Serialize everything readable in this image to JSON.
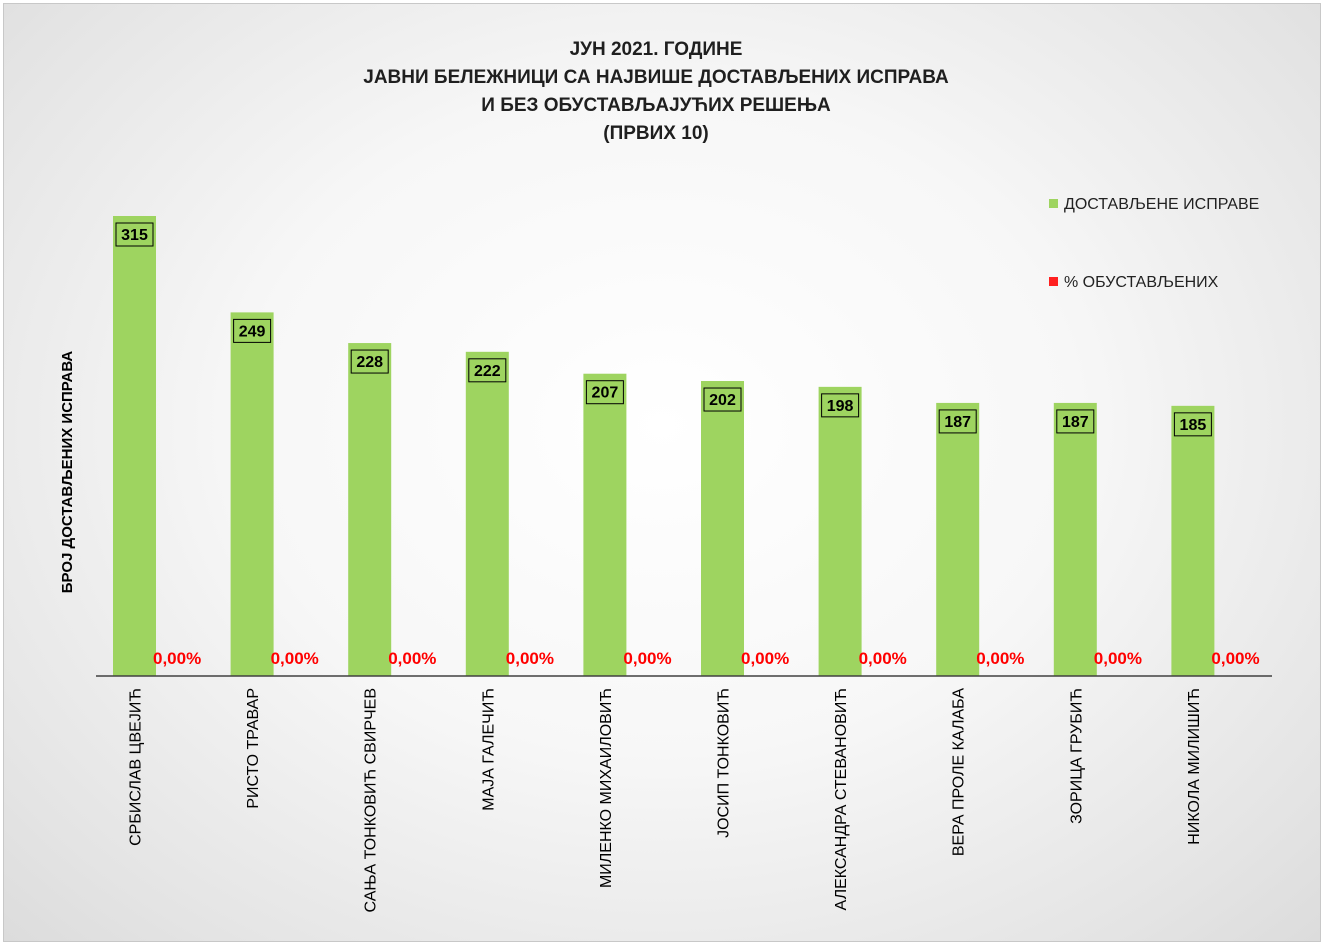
{
  "chart_data": {
    "type": "bar",
    "title_lines": [
      "ЈУН 2021. ГОДИНЕ",
      "ЈАВНИ БЕЛЕЖНИЦИ СА НАЈВИШЕ ДОСТАВЉЕНИХ ИСПРАВА",
      "И БЕЗ ОБУСТАВЉАЈУЋИХ РЕШЕЊА",
      "(ПРВИХ 10)"
    ],
    "ylabel": "БРОЈ ДОСТАВЉЕНИХ ИСПРАВА",
    "xlabel": "",
    "ylim": [
      0,
      350
    ],
    "grid": false,
    "legend_position": "top-right",
    "categories": [
      "СРБИСЛАВ ЦВЕЈИЋ",
      "РИСТО ТРАВАР",
      "САЊА ТОНКОВИЋ СВИРЧЕВ",
      "МАЈА ГАЛЕЧИЋ",
      "МИЛЕНКО МИХАИЛОВИЋ",
      "ЈОСИП ТОНКОВИЋ",
      "АЛЕКСАНДРА СТЕВАНОВИЋ",
      "ВЕРА ПРОЛЕ КАЛАБА",
      "ЗОРИЦА  ГРУБИЋ",
      "НИКОЛА МИЛИШИЋ"
    ],
    "series": [
      {
        "name": "ДОСТАВЉЕНЕ ИСПРАВЕ",
        "color": "#9ed460",
        "values": [
          315,
          249,
          228,
          222,
          207,
          202,
          198,
          187,
          187,
          185
        ],
        "labels": [
          "315",
          "249",
          "228",
          "222",
          "207",
          "202",
          "198",
          "187",
          "187",
          "185"
        ]
      },
      {
        "name": "% ОБУСТАВЉЕНИХ",
        "color": "#ff2020",
        "values": [
          0,
          0,
          0,
          0,
          0,
          0,
          0,
          0,
          0,
          0
        ],
        "labels": [
          "0,00%",
          "0,00%",
          "0,00%",
          "0,00%",
          "0,00%",
          "0,00%",
          "0,00%",
          "0,00%",
          "0,00%",
          "0,00%"
        ]
      }
    ]
  }
}
